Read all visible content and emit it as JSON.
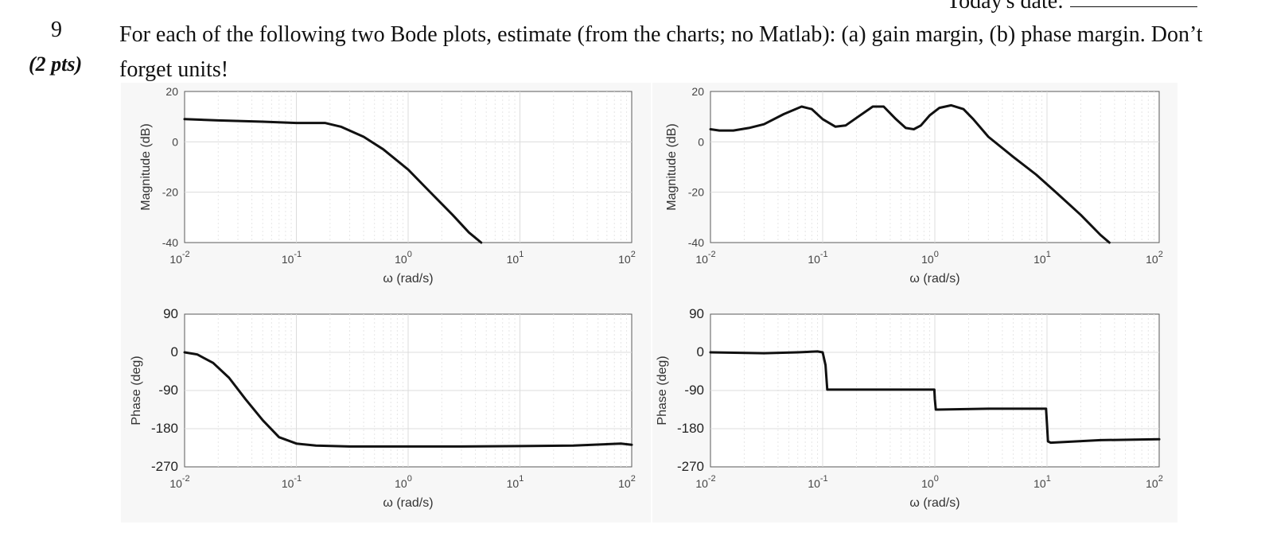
{
  "header": {
    "date_label": "Today's date:"
  },
  "question": {
    "number": "9",
    "points": "(2 pts)",
    "text": "For each of the following two Bode plots, estimate (from the charts; no Matlab): (a) gain margin, (b) phase margin. Don’t forget units!"
  },
  "chart_data": [
    {
      "type": "line",
      "xscale": "log",
      "xlim": [
        0.01,
        100
      ],
      "ylim": [
        -40,
        20
      ],
      "yticks": [
        "20",
        "0",
        "-20",
        "-40"
      ],
      "xticks": [
        "10",
        "10",
        "10",
        "10",
        "10"
      ],
      "xtick_exponents": [
        "-2",
        "-1",
        "0",
        "1",
        "2"
      ],
      "xlabel": "ω (rad/s)",
      "ylabel": "Magnitude (dB)",
      "grid": true,
      "series": [
        {
          "x": [
            0.01,
            0.02,
            0.05,
            0.1,
            0.18,
            0.25,
            0.4,
            0.6,
            1.0,
            1.5,
            2.5,
            3.5,
            4.5
          ],
          "y": [
            9,
            8.5,
            8,
            7.5,
            7.5,
            6,
            2,
            -3,
            -11,
            -19,
            -29,
            -36,
            -40
          ]
        }
      ]
    },
    {
      "type": "line",
      "xscale": "log",
      "xlim": [
        0.01,
        100
      ],
      "ylim": [
        -270,
        90
      ],
      "yticks": [
        "90",
        "0",
        "-90",
        "-180",
        "-270"
      ],
      "xticks": [
        "10",
        "10",
        "10",
        "10",
        "10"
      ],
      "xtick_exponents": [
        "-2",
        "-1",
        "0",
        "1",
        "2"
      ],
      "xlabel": "ω (rad/s)",
      "ylabel": "Phase (deg)",
      "grid": true,
      "series": [
        {
          "x": [
            0.01,
            0.013,
            0.018,
            0.025,
            0.035,
            0.05,
            0.07,
            0.1,
            0.15,
            0.3,
            1,
            3,
            10,
            30,
            80,
            100
          ],
          "y": [
            0,
            -5,
            -25,
            -60,
            -110,
            -160,
            -200,
            -215,
            -220,
            -222,
            -222,
            -222,
            -221,
            -220,
            -215,
            -218
          ]
        }
      ]
    },
    {
      "type": "line",
      "xscale": "log",
      "xlim": [
        0.01,
        100
      ],
      "ylim": [
        -40,
        20
      ],
      "yticks": [
        "20",
        "0",
        "-20",
        "-40"
      ],
      "xticks": [
        "10",
        "10",
        "10",
        "10",
        "10"
      ],
      "xtick_exponents": [
        "-2",
        "-1",
        "0",
        "1",
        "2"
      ],
      "xlabel": "ω (rad/s)",
      "ylabel": "Magnitude (dB)",
      "grid": true,
      "series": [
        {
          "x": [
            0.01,
            0.012,
            0.016,
            0.022,
            0.03,
            0.045,
            0.065,
            0.08,
            0.1,
            0.13,
            0.16,
            0.2,
            0.28,
            0.35,
            0.45,
            0.55,
            0.65,
            0.75,
            0.9,
            1.1,
            1.4,
            1.8,
            2.2,
            3,
            5,
            8,
            12,
            20,
            30,
            36
          ],
          "y": [
            5,
            4.5,
            4.5,
            5.5,
            7,
            11,
            14,
            13,
            9,
            6,
            6.5,
            9.5,
            14,
            14,
            9,
            5.5,
            5,
            6.5,
            10.5,
            13.5,
            14.5,
            13,
            9,
            2,
            -6,
            -13,
            -20,
            -29,
            -37,
            -40
          ]
        }
      ]
    },
    {
      "type": "line",
      "xscale": "log",
      "xlim": [
        0.01,
        100
      ],
      "ylim": [
        -270,
        90
      ],
      "yticks": [
        "90",
        "0",
        "-90",
        "-180",
        "-270"
      ],
      "xticks": [
        "10",
        "10",
        "10",
        "10",
        "10"
      ],
      "xtick_exponents": [
        "-2",
        "-1",
        "0",
        "1",
        "2"
      ],
      "xlabel": "ω (rad/s)",
      "ylabel": "Phase (deg)",
      "grid": true,
      "series": [
        {
          "x": [
            0.01,
            0.03,
            0.06,
            0.09,
            0.1,
            0.106,
            0.11,
            0.2,
            0.5,
            0.99,
            1.0,
            1.02,
            1.06,
            3,
            9.8,
            10.0,
            10.2,
            10.8,
            30,
            100
          ],
          "y": [
            0,
            -2,
            0,
            2,
            0,
            -30,
            -88,
            -88,
            -88,
            -88,
            -110,
            -135,
            -135,
            -133,
            -133,
            -170,
            -210,
            -213,
            -207,
            -205
          ]
        }
      ]
    }
  ]
}
